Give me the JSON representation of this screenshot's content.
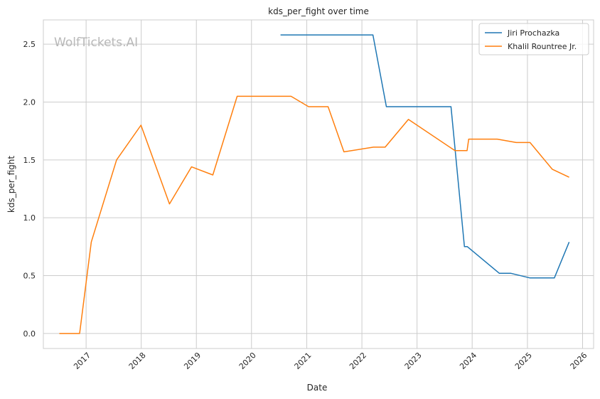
{
  "chart_data": {
    "type": "line",
    "title": "kds_per_fight over time",
    "xlabel": "Date",
    "ylabel": "kds_per_fight",
    "watermark": "WolfTickets.AI",
    "x_ticks": [
      "2017",
      "2018",
      "2019",
      "2020",
      "2021",
      "2022",
      "2023",
      "2024",
      "2025",
      "2026"
    ],
    "y_ticks": [
      "0.0",
      "0.5",
      "1.0",
      "1.5",
      "2.0",
      "2.5"
    ],
    "xlim": [
      "2016-03-24",
      "2026-03-15"
    ],
    "ylim": [
      -0.13,
      2.71
    ],
    "grid": true,
    "legend_position": "top-right",
    "series": [
      {
        "name": "Jiri Prochazka",
        "color": "#1f77b4",
        "points": [
          [
            "2020-07-11",
            2.58
          ],
          [
            "2022-03-15",
            2.58
          ],
          [
            "2022-06-12",
            1.96
          ],
          [
            "2023-08-14",
            1.96
          ],
          [
            "2023-11-11",
            0.75
          ],
          [
            "2023-11-30",
            0.75
          ],
          [
            "2024-06-29",
            0.52
          ],
          [
            "2024-09-14",
            0.52
          ],
          [
            "2025-01-18",
            0.48
          ],
          [
            "2025-06-28",
            0.48
          ],
          [
            "2025-10-04",
            0.79
          ]
        ]
      },
      {
        "name": "Khalil Rountree Jr.",
        "color": "#ff7f0e",
        "points": [
          [
            "2016-07-08",
            0.0
          ],
          [
            "2016-11-19",
            0.0
          ],
          [
            "2017-02-04",
            0.79
          ],
          [
            "2017-07-22",
            1.5
          ],
          [
            "2017-12-30",
            1.8
          ],
          [
            "2018-07-07",
            1.12
          ],
          [
            "2018-11-30",
            1.44
          ],
          [
            "2019-04-20",
            1.37
          ],
          [
            "2019-09-28",
            2.05
          ],
          [
            "2020-09-19",
            2.05
          ],
          [
            "2021-01-13",
            1.96
          ],
          [
            "2021-05-22",
            1.96
          ],
          [
            "2021-09-04",
            1.57
          ],
          [
            "2022-03-19",
            1.61
          ],
          [
            "2022-06-04",
            1.61
          ],
          [
            "2022-11-05",
            1.85
          ],
          [
            "2023-09-09",
            1.58
          ],
          [
            "2023-11-28",
            1.58
          ],
          [
            "2023-12-09",
            1.68
          ],
          [
            "2024-06-15",
            1.68
          ],
          [
            "2024-10-19",
            1.65
          ],
          [
            "2025-01-18",
            1.65
          ],
          [
            "2025-06-14",
            1.42
          ],
          [
            "2025-10-04",
            1.35
          ]
        ]
      }
    ]
  }
}
